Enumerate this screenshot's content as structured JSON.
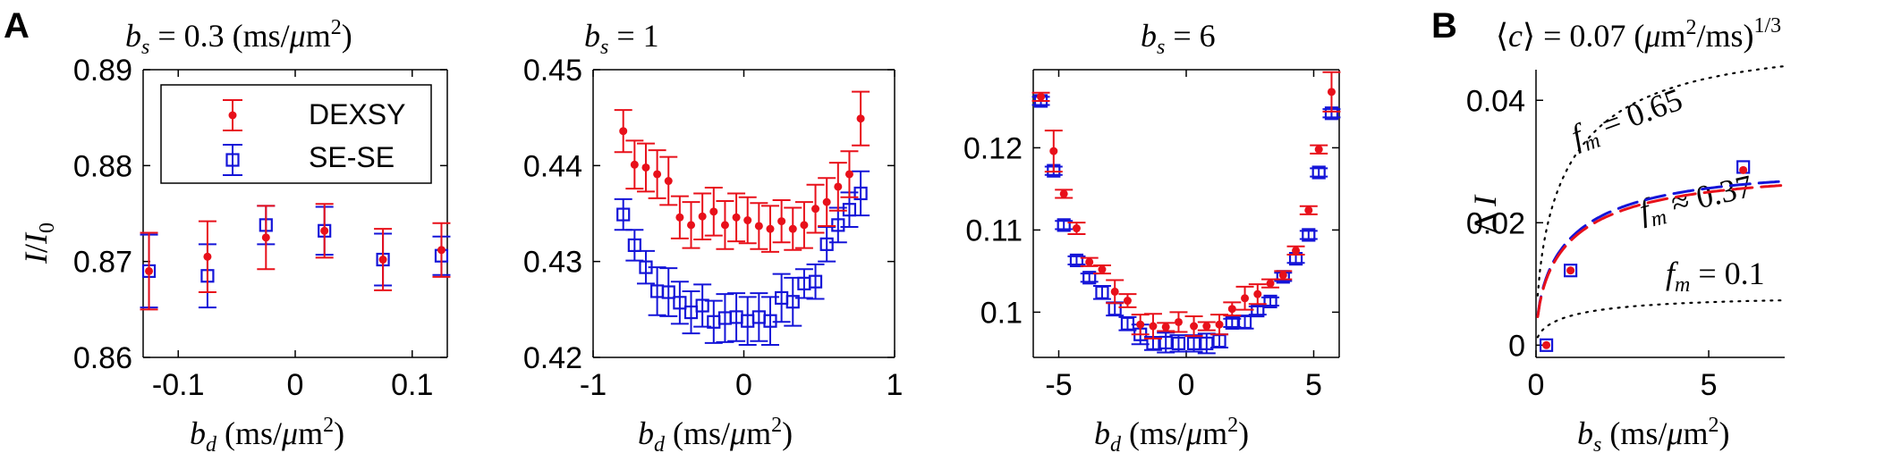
{
  "panel_labels": {
    "a": "A",
    "b": "B"
  },
  "legend": {
    "dexsy": "DEXSY",
    "sese": "SE-SE"
  },
  "colors": {
    "dexsy": "#e8101a",
    "sese": "#1414d8",
    "axis": "#000000",
    "theory": "#000000"
  },
  "chart_data": [
    {
      "type": "scatter",
      "title": "b_s = 0.3 (ms/μm²)",
      "xlabel": "b_d (ms/μm²)",
      "ylabel": "I/I_0",
      "xlim": [
        -0.13,
        0.13
      ],
      "ylim": [
        0.86,
        0.89
      ],
      "xticks": [
        -0.1,
        0,
        0.1
      ],
      "xtick_labels": [
        "-0.1",
        "0",
        "0.1"
      ],
      "yticks": [
        0.86,
        0.87,
        0.88,
        0.89
      ],
      "ytick_labels": [
        "0.86",
        "0.87",
        "0.88",
        "0.89"
      ],
      "series": [
        {
          "name": "DEXSY",
          "marker": "dot",
          "x": [
            -0.125,
            -0.075,
            -0.025,
            0.025,
            0.075,
            0.125
          ],
          "y": [
            0.869,
            0.8705,
            0.8725,
            0.8732,
            0.8702,
            0.8712
          ],
          "err": [
            0.004,
            0.0037,
            0.0033,
            0.0028,
            0.0032,
            0.0028
          ]
        },
        {
          "name": "SE-SE",
          "marker": "square",
          "x": [
            -0.125,
            -0.075,
            -0.025,
            0.025,
            0.075,
            0.125
          ],
          "y": [
            0.869,
            0.8685,
            0.8738,
            0.8732,
            0.8702,
            0.8706
          ],
          "err": [
            0.0038,
            0.0033,
            0.002,
            0.0025,
            0.0027,
            0.002
          ]
        }
      ]
    },
    {
      "type": "scatter",
      "title": "b_s = 1",
      "xlabel": "b_d (ms/μm²)",
      "ylabel": "",
      "xlim": [
        -1,
        1
      ],
      "ylim": [
        0.42,
        0.45
      ],
      "xticks": [
        -1,
        0,
        1
      ],
      "xtick_labels": [
        "-1",
        "0",
        "1"
      ],
      "yticks": [
        0.42,
        0.43,
        0.44,
        0.45
      ],
      "ytick_labels": [
        "0.42",
        "0.43",
        "0.44",
        "0.45"
      ],
      "series": [
        {
          "name": "DEXSY",
          "marker": "dot",
          "x": [
            -0.8,
            -0.725,
            -0.65,
            -0.575,
            -0.5,
            -0.425,
            -0.35,
            -0.275,
            -0.2,
            -0.125,
            -0.05,
            0.025,
            0.1,
            0.175,
            0.25,
            0.325,
            0.4,
            0.475,
            0.55,
            0.625,
            0.7,
            0.775
          ],
          "y": [
            0.4436,
            0.4401,
            0.4398,
            0.4391,
            0.4384,
            0.4346,
            0.4338,
            0.4347,
            0.4352,
            0.4338,
            0.4346,
            0.4343,
            0.4337,
            0.4334,
            0.4342,
            0.4334,
            0.4338,
            0.4355,
            0.4362,
            0.4378,
            0.4391,
            0.4449
          ],
          "err": [
            0.0022,
            0.0025,
            0.0025,
            0.0025,
            0.0025,
            0.0022,
            0.0024,
            0.0024,
            0.0025,
            0.0025,
            0.0025,
            0.0024,
            0.0024,
            0.0024,
            0.0022,
            0.0022,
            0.0024,
            0.0025,
            0.0025,
            0.0025,
            0.0024,
            0.0028
          ]
        },
        {
          "name": "SE-SE",
          "marker": "square",
          "x": [
            -0.8,
            -0.725,
            -0.65,
            -0.575,
            -0.5,
            -0.425,
            -0.35,
            -0.275,
            -0.2,
            -0.125,
            -0.05,
            0.025,
            0.1,
            0.175,
            0.25,
            0.325,
            0.4,
            0.475,
            0.55,
            0.625,
            0.7,
            0.775
          ],
          "y": [
            0.4349,
            0.4317,
            0.4294,
            0.4269,
            0.4268,
            0.4257,
            0.4247,
            0.4254,
            0.4237,
            0.4241,
            0.4242,
            0.4238,
            0.4242,
            0.4238,
            0.4262,
            0.4258,
            0.4277,
            0.4279,
            0.4318,
            0.4338,
            0.4354,
            0.4371
          ],
          "err": [
            0.0016,
            0.0016,
            0.0017,
            0.0025,
            0.0025,
            0.0022,
            0.0022,
            0.0022,
            0.0022,
            0.0025,
            0.0025,
            0.0025,
            0.0025,
            0.0025,
            0.0025,
            0.0025,
            0.0015,
            0.0018,
            0.0018,
            0.0018,
            0.0018,
            0.0023
          ]
        }
      ]
    },
    {
      "type": "scatter",
      "title": "b_s = 6",
      "xlabel": "b_d (ms/μm²)",
      "ylabel": "",
      "xlim": [
        -6,
        6
      ],
      "ylim": [
        0.0945,
        0.1295
      ],
      "xticks": [
        -5,
        0,
        5
      ],
      "xtick_labels": [
        "-5",
        "0",
        "5"
      ],
      "yticks": [
        0.1,
        0.11,
        0.12
      ],
      "ytick_labels": [
        "0.1",
        "0.11",
        "0.12"
      ],
      "series": [
        {
          "name": "DEXSY",
          "marker": "dot",
          "x": [
            -5.7,
            -5.2,
            -4.8,
            -4.3,
            -3.8,
            -3.3,
            -2.8,
            -2.3,
            -1.8,
            -1.3,
            -0.8,
            -0.3,
            0.3,
            0.8,
            1.3,
            1.8,
            2.3,
            2.8,
            3.3,
            3.8,
            4.3,
            4.8,
            5.2,
            5.7
          ],
          "y": [
            0.1262,
            0.1196,
            0.1144,
            0.1102,
            0.1061,
            0.1052,
            0.1025,
            0.1014,
            0.0985,
            0.0983,
            0.0982,
            0.0988,
            0.0983,
            0.0983,
            0.0985,
            0.1004,
            0.1017,
            0.1022,
            0.1035,
            0.1045,
            0.1075,
            0.1124,
            0.1198,
            0.1268
          ],
          "err": [
            0.0005,
            0.0025,
            0.0005,
            0.0007,
            0.0005,
            0.0005,
            0.0014,
            0.0008,
            0.0012,
            0.0015,
            0.0005,
            0.0012,
            0.0012,
            0.0005,
            0.0012,
            0.0008,
            0.0014,
            0.0012,
            0.0005,
            0.0005,
            0.0005,
            0.0005,
            0.0005,
            0.0024
          ]
        },
        {
          "name": "SE-SE",
          "marker": "square",
          "x": [
            -5.7,
            -5.2,
            -4.8,
            -4.3,
            -3.8,
            -3.3,
            -2.8,
            -2.3,
            -1.8,
            -1.3,
            -0.8,
            -0.3,
            0.3,
            0.8,
            1.3,
            1.8,
            2.3,
            2.8,
            3.3,
            3.8,
            4.3,
            4.8,
            5.2,
            5.7
          ],
          "y": [
            0.1257,
            0.1172,
            0.1106,
            0.1063,
            0.1042,
            0.1024,
            0.1004,
            0.0986,
            0.0973,
            0.0962,
            0.0963,
            0.0962,
            0.0962,
            0.0962,
            0.0965,
            0.0987,
            0.0988,
            0.1002,
            0.1013,
            0.1043,
            0.1065,
            0.1094,
            0.117,
            0.1242
          ],
          "err": [
            0.0005,
            0.0005,
            0.0005,
            0.0005,
            0.0005,
            0.0008,
            0.0008,
            0.0008,
            0.0012,
            0.0008,
            0.0012,
            0.001,
            0.001,
            0.0012,
            0.0008,
            0.0005,
            0.0008,
            0.0005,
            0.0005,
            0.0005,
            0.0005,
            0.0005,
            0.0005,
            0.0005
          ]
        }
      ]
    },
    {
      "type": "line",
      "title": "⟨c⟩ = 0.07 (μm²/ms)^1/3",
      "xlabel": "b_s (ms/μm²)",
      "ylabel": "Δ I",
      "xlim": [
        0,
        7.2
      ],
      "ylim": [
        -0.002,
        0.045
      ],
      "xticks": [
        0,
        5
      ],
      "xtick_labels": [
        "0",
        "5"
      ],
      "yticks": [
        0,
        0.02,
        0.04
      ],
      "ytick_labels": [
        "0",
        "0.02",
        "0.04"
      ],
      "annotations": [
        "f_m = 0.65",
        "f_m ≈ 0.37",
        "f_m = 0.1"
      ],
      "theory_curves": [
        {
          "name": "f_m = 0.65",
          "style": "dotted",
          "color": "black",
          "scale": 0.0485
        },
        {
          "name": "f_m = 0.1",
          "style": "dotted",
          "color": "black",
          "scale": 0.0078
        },
        {
          "name": "f_m ≈ 0.37 SE-SE",
          "style": "dashed",
          "color": "blue",
          "scale": 0.0285
        },
        {
          "name": "f_m ≈ 0.37 DEXSY",
          "style": "dashed",
          "color": "red",
          "scale": 0.0278
        }
      ],
      "series": [
        {
          "name": "DEXSY",
          "marker": "dot",
          "x": [
            0.3,
            1,
            6
          ],
          "y": [
            0.0,
            0.0122,
            0.0286
          ]
        },
        {
          "name": "SE-SE",
          "marker": "square",
          "x": [
            0.3,
            1,
            6
          ],
          "y": [
            0.0,
            0.0122,
            0.0291
          ]
        }
      ]
    }
  ]
}
